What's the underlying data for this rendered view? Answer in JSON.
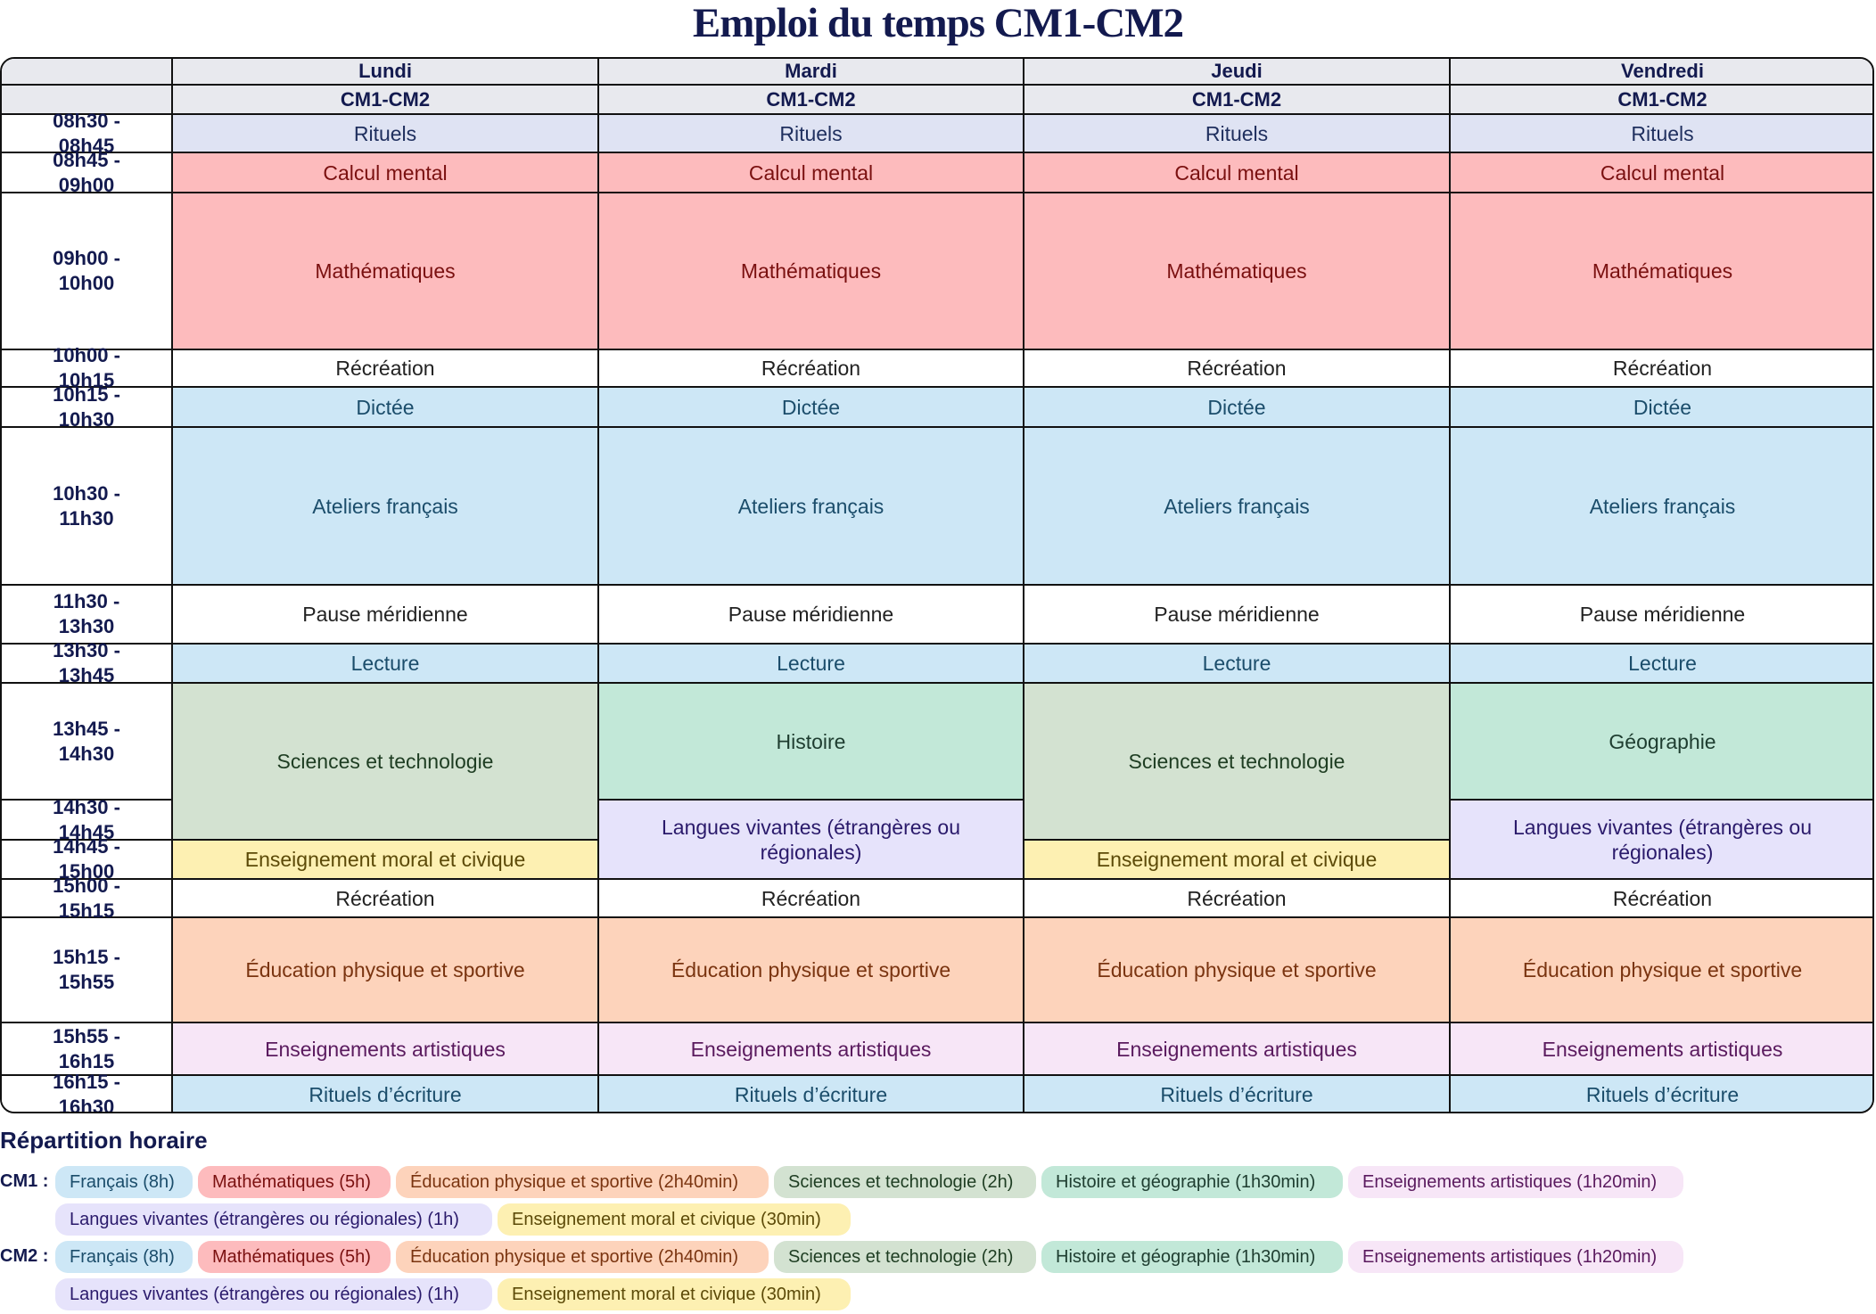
{
  "title": "Emploi du temps CM1-CM2",
  "header": {
    "days": [
      "Lundi",
      "Mardi",
      "Jeudi",
      "Vendredi"
    ],
    "class_label": "CM1-CM2"
  },
  "times": [
    "08h30 - 08h45",
    "08h45 - 09h00",
    "09h00 - 10h00",
    "10h00 - 10h15",
    "10h15 - 10h30",
    "10h30 - 11h30",
    "11h30 - 13h30",
    "13h30 - 13h45",
    "13h45 - 14h30",
    "14h30 - 14h45",
    "14h45 - 15h00",
    "15h00 - 15h15",
    "15h15 - 15h55",
    "15h55 - 16h15",
    "16h15 - 16h30"
  ],
  "subjects": {
    "rituels": {
      "label": "Rituels",
      "bg": "#dfe3f3",
      "fg": "#1f2f5e"
    },
    "calcul": {
      "label": "Calcul mental",
      "bg": "#fdbbbd",
      "fg": "#7a1010"
    },
    "maths": {
      "label": "Mathématiques",
      "bg": "#fdbbbd",
      "fg": "#7a1010"
    },
    "recre": {
      "label": "Récréation",
      "bg": "#ffffff",
      "fg": "#222222"
    },
    "dictee": {
      "label": "Dictée",
      "bg": "#cde7f6",
      "fg": "#1b4d6b"
    },
    "ateliers": {
      "label": "Ateliers français",
      "bg": "#cde7f6",
      "fg": "#1b4d6b"
    },
    "pause": {
      "label": "Pause méridienne",
      "bg": "#ffffff",
      "fg": "#222222"
    },
    "lecture": {
      "label": "Lecture",
      "bg": "#cde7f6",
      "fg": "#1b4d6b"
    },
    "sciences": {
      "label": "Sciences et technologie",
      "bg": "#d3e2d1",
      "fg": "#1e3d22"
    },
    "histoire": {
      "label": "Histoire",
      "bg": "#c2e8d8",
      "fg": "#1e3d30"
    },
    "geo": {
      "label": "Géographie",
      "bg": "#c2e8d8",
      "fg": "#1e3d30"
    },
    "langues": {
      "label": "Langues vivantes (étrangères ou régionales)",
      "bg": "#e6e3fb",
      "fg": "#2a1a6b"
    },
    "emc": {
      "label": "Enseignement moral et civique",
      "bg": "#fdf0b2",
      "fg": "#5c4a08"
    },
    "eps": {
      "label": "Éducation physique et sportive",
      "bg": "#fdd3bb",
      "fg": "#7a3410"
    },
    "arts": {
      "label": "Enseignements artistiques",
      "bg": "#f7e6f7",
      "fg": "#5a1a5e"
    },
    "ecriture": {
      "label": "Rituels d’écriture",
      "bg": "#cde7f6",
      "fg": "#1b4d6b"
    }
  },
  "legend": {
    "title": "Répartition horaire",
    "groups": [
      {
        "label": "CM1 :",
        "chips": [
          "Français (8h)",
          "Mathématiques (5h)",
          "Éducation physique et sportive (2h40min)",
          "Sciences et technologie (2h)",
          "Histoire et géographie (1h30min)",
          "Enseignements artistiques (1h20min)",
          "Langues vivantes (étrangères ou régionales) (1h)",
          "Enseignement moral et civique (30min)"
        ]
      },
      {
        "label": "CM2 :",
        "chips": [
          "Français (8h)",
          "Mathématiques (5h)",
          "Éducation physique et sportive (2h40min)",
          "Sciences et technologie (2h)",
          "Histoire et géographie (1h30min)",
          "Enseignements artistiques (1h20min)",
          "Langues vivantes (étrangères ou régionales) (1h)",
          "Enseignement moral et civique (30min)"
        ]
      }
    ]
  }
}
